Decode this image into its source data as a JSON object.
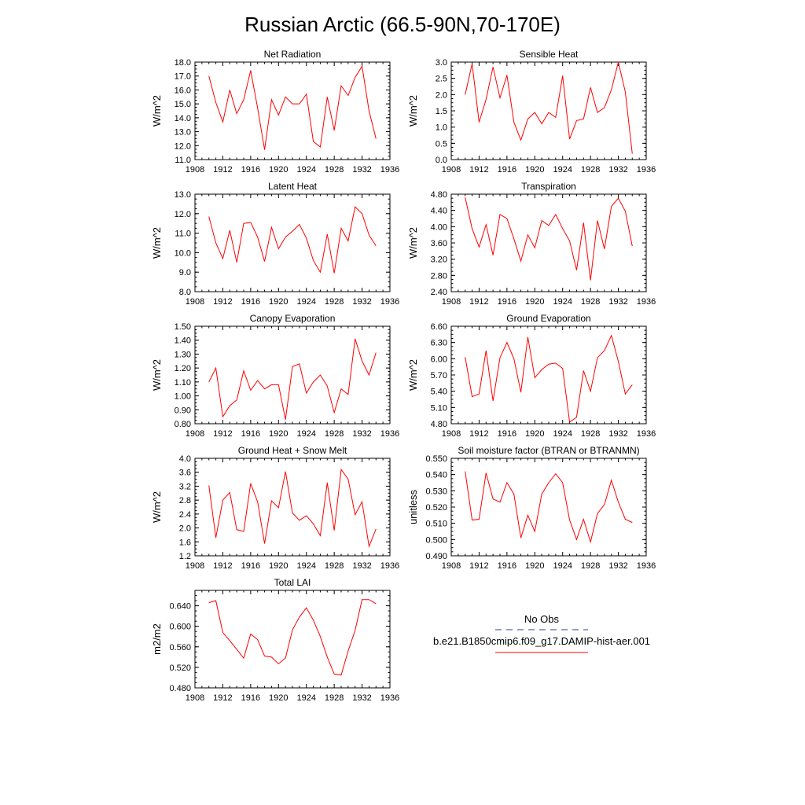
{
  "figure": {
    "title": "Russian Arctic (66.5-90N,70-170E)"
  },
  "legend": {
    "entries": [
      {
        "label": "No Obs",
        "color": "#2b3a9c",
        "dash": true
      },
      {
        "label": "b.e21.B1850cmip6.f09_g17.DAMIP-hist-aer.001",
        "color": "#ff0000",
        "dash": false
      }
    ]
  },
  "chart_data": [
    {
      "type": "line",
      "title": "Net Radiation",
      "ylabel": "W/m^2",
      "xlim": [
        1908,
        1936
      ],
      "ylim": [
        11.0,
        18.0
      ],
      "x_ticks": [
        "1908",
        "1912",
        "1916",
        "1920",
        "1924",
        "1928",
        "1932",
        "1936"
      ],
      "y_ticks": [
        "11.0",
        "12.0",
        "13.0",
        "14.0",
        "15.0",
        "16.0",
        "17.0",
        "18.0"
      ],
      "x": [
        1910,
        1911,
        1912,
        1913,
        1914,
        1915,
        1916,
        1917,
        1918,
        1919,
        1920,
        1921,
        1922,
        1923,
        1924,
        1925,
        1926,
        1927,
        1928,
        1929,
        1930,
        1931,
        1932,
        1933,
        1934
      ],
      "series": [
        {
          "color": "#ff0000",
          "values": [
            17.0,
            15.1,
            13.7,
            16.0,
            14.3,
            15.3,
            17.4,
            14.7,
            11.7,
            15.3,
            14.2,
            15.5,
            15.0,
            15.0,
            15.7,
            12.3,
            11.9,
            15.5,
            13.1,
            16.3,
            15.6,
            16.9,
            17.7,
            14.5,
            12.5
          ]
        }
      ]
    },
    {
      "type": "line",
      "title": "Sensible Heat",
      "ylabel": "W/m^2",
      "xlim": [
        1908,
        1936
      ],
      "ylim": [
        0.0,
        3.0
      ],
      "x_ticks": [
        "1908",
        "1912",
        "1916",
        "1920",
        "1924",
        "1928",
        "1932",
        "1936"
      ],
      "y_ticks": [
        "0.0",
        "0.5",
        "1.0",
        "1.5",
        "2.0",
        "2.5",
        "3.0"
      ],
      "x": [
        1910,
        1911,
        1912,
        1913,
        1914,
        1915,
        1916,
        1917,
        1918,
        1919,
        1920,
        1921,
        1922,
        1923,
        1924,
        1925,
        1926,
        1927,
        1928,
        1929,
        1930,
        1931,
        1932,
        1933,
        1934
      ],
      "series": [
        {
          "color": "#ff0000",
          "values": [
            2.0,
            2.95,
            1.15,
            1.85,
            2.85,
            1.9,
            2.6,
            1.15,
            0.6,
            1.25,
            1.45,
            1.1,
            1.45,
            1.3,
            2.58,
            0.63,
            1.2,
            1.25,
            2.22,
            1.45,
            1.6,
            2.15,
            3.0,
            2.08,
            0.18
          ]
        }
      ]
    },
    {
      "type": "line",
      "title": "Latent Heat",
      "ylabel": "W/m^2",
      "xlim": [
        1908,
        1936
      ],
      "ylim": [
        8.0,
        13.0
      ],
      "x_ticks": [
        "1908",
        "1912",
        "1916",
        "1920",
        "1924",
        "1928",
        "1932",
        "1936"
      ],
      "y_ticks": [
        "8.0",
        "9.0",
        "10.0",
        "11.0",
        "12.0",
        "13.0"
      ],
      "x": [
        1910,
        1911,
        1912,
        1913,
        1914,
        1915,
        1916,
        1917,
        1918,
        1919,
        1920,
        1921,
        1922,
        1923,
        1924,
        1925,
        1926,
        1927,
        1928,
        1929,
        1930,
        1931,
        1932,
        1933,
        1934
      ],
      "series": [
        {
          "color": "#ff0000",
          "values": [
            11.85,
            10.5,
            9.7,
            11.15,
            9.5,
            11.5,
            11.55,
            10.8,
            9.55,
            11.3,
            10.2,
            10.8,
            11.1,
            11.45,
            10.75,
            9.6,
            9.0,
            10.95,
            8.95,
            11.25,
            10.6,
            12.35,
            12.0,
            10.9,
            10.35
          ]
        }
      ]
    },
    {
      "type": "line",
      "title": "Transpiration",
      "ylabel": "W/m^2",
      "xlim": [
        1908,
        1936
      ],
      "ylim": [
        2.4,
        4.8
      ],
      "x_ticks": [
        "1908",
        "1912",
        "1916",
        "1920",
        "1924",
        "1928",
        "1932",
        "1936"
      ],
      "y_ticks": [
        "2.40",
        "2.80",
        "3.20",
        "3.60",
        "4.00",
        "4.40",
        "4.80"
      ],
      "x": [
        1910,
        1911,
        1912,
        1913,
        1914,
        1915,
        1916,
        1917,
        1918,
        1919,
        1920,
        1921,
        1922,
        1923,
        1924,
        1925,
        1926,
        1927,
        1928,
        1929,
        1930,
        1931,
        1932,
        1933,
        1934
      ],
      "series": [
        {
          "color": "#ff0000",
          "values": [
            4.72,
            3.95,
            3.5,
            4.05,
            3.3,
            4.3,
            4.2,
            3.7,
            3.15,
            3.8,
            3.48,
            4.15,
            4.03,
            4.3,
            3.95,
            3.65,
            2.93,
            4.1,
            2.68,
            4.15,
            3.45,
            4.5,
            4.7,
            4.38,
            3.52
          ]
        }
      ]
    },
    {
      "type": "line",
      "title": "Canopy Evaporation",
      "ylabel": "W/m^2",
      "xlim": [
        1908,
        1936
      ],
      "ylim": [
        0.8,
        1.5
      ],
      "x_ticks": [
        "1908",
        "1912",
        "1916",
        "1920",
        "1924",
        "1928",
        "1932",
        "1936"
      ],
      "y_ticks": [
        "0.80",
        "0.90",
        "1.00",
        "1.10",
        "1.20",
        "1.30",
        "1.40",
        "1.50"
      ],
      "x": [
        1910,
        1911,
        1912,
        1913,
        1914,
        1915,
        1916,
        1917,
        1918,
        1919,
        1920,
        1921,
        1922,
        1923,
        1924,
        1925,
        1926,
        1927,
        1928,
        1929,
        1930,
        1931,
        1932,
        1933,
        1934
      ],
      "series": [
        {
          "color": "#ff0000",
          "values": [
            1.1,
            1.2,
            0.85,
            0.93,
            0.97,
            1.18,
            1.04,
            1.11,
            1.05,
            1.08,
            1.08,
            0.83,
            1.21,
            1.23,
            1.02,
            1.1,
            1.15,
            1.07,
            0.88,
            1.05,
            1.01,
            1.41,
            1.25,
            1.15,
            1.31
          ]
        }
      ]
    },
    {
      "type": "line",
      "title": "Ground Evaporation",
      "ylabel": "W/m^2",
      "xlim": [
        1908,
        1936
      ],
      "ylim": [
        4.8,
        6.6
      ],
      "x_ticks": [
        "1908",
        "1912",
        "1916",
        "1920",
        "1924",
        "1928",
        "1932",
        "1936"
      ],
      "y_ticks": [
        "4.80",
        "5.10",
        "5.40",
        "5.70",
        "6.00",
        "6.30",
        "6.60"
      ],
      "x": [
        1910,
        1911,
        1912,
        1913,
        1914,
        1915,
        1916,
        1917,
        1918,
        1919,
        1920,
        1921,
        1922,
        1923,
        1924,
        1925,
        1926,
        1927,
        1928,
        1929,
        1930,
        1931,
        1932,
        1933,
        1934
      ],
      "series": [
        {
          "color": "#ff0000",
          "values": [
            6.03,
            5.3,
            5.35,
            6.15,
            5.22,
            6.02,
            6.3,
            6.0,
            5.38,
            6.4,
            5.65,
            5.8,
            5.9,
            5.92,
            5.82,
            4.83,
            4.92,
            5.78,
            5.4,
            6.02,
            6.15,
            6.43,
            5.95,
            5.35,
            5.52
          ]
        }
      ]
    },
    {
      "type": "line",
      "title": "Ground Heat + Snow Melt",
      "ylabel": "W/m^2",
      "xlim": [
        1908,
        1936
      ],
      "ylim": [
        1.2,
        4.0
      ],
      "x_ticks": [
        "1908",
        "1912",
        "1916",
        "1920",
        "1924",
        "1928",
        "1932",
        "1936"
      ],
      "y_ticks": [
        "1.2",
        "1.6",
        "2.0",
        "2.4",
        "2.8",
        "3.2",
        "3.6",
        "4.0"
      ],
      "x": [
        1910,
        1911,
        1912,
        1913,
        1914,
        1915,
        1916,
        1917,
        1918,
        1919,
        1920,
        1921,
        1922,
        1923,
        1924,
        1925,
        1926,
        1927,
        1928,
        1929,
        1930,
        1931,
        1932,
        1933,
        1934
      ],
      "series": [
        {
          "color": "#ff0000",
          "values": [
            3.22,
            1.72,
            2.8,
            3.02,
            1.95,
            1.9,
            3.28,
            2.75,
            1.55,
            2.78,
            2.58,
            3.62,
            2.43,
            2.22,
            2.35,
            2.12,
            1.78,
            3.3,
            1.93,
            3.68,
            3.4,
            2.38,
            2.75,
            1.47,
            1.97
          ]
        }
      ]
    },
    {
      "type": "line",
      "title": "Soil moisture factor (BTRAN or BTRANMN)",
      "ylabel": "unitless",
      "xlim": [
        1908,
        1936
      ],
      "ylim": [
        0.49,
        0.55
      ],
      "x_ticks": [
        "1908",
        "1912",
        "1916",
        "1920",
        "1924",
        "1928",
        "1932",
        "1936"
      ],
      "y_ticks": [
        "0.490",
        "0.500",
        "0.510",
        "0.520",
        "0.530",
        "0.540",
        "0.550"
      ],
      "x": [
        1910,
        1911,
        1912,
        1913,
        1914,
        1915,
        1916,
        1917,
        1918,
        1919,
        1920,
        1921,
        1922,
        1923,
        1924,
        1925,
        1926,
        1927,
        1928,
        1929,
        1930,
        1931,
        1932,
        1933,
        1934
      ],
      "series": [
        {
          "color": "#ff0000",
          "values": [
            0.542,
            0.512,
            0.5125,
            0.541,
            0.525,
            0.523,
            0.535,
            0.528,
            0.501,
            0.515,
            0.505,
            0.528,
            0.535,
            0.5405,
            0.535,
            0.512,
            0.5,
            0.5125,
            0.4985,
            0.516,
            0.5215,
            0.5365,
            0.523,
            0.5125,
            0.5105
          ]
        }
      ]
    },
    {
      "type": "line",
      "title": "Total LAI",
      "ylabel": "m2/m2",
      "xlim": [
        1908,
        1936
      ],
      "ylim": [
        0.48,
        0.67
      ],
      "x_ticks": [
        "1908",
        "1912",
        "1916",
        "1920",
        "1924",
        "1928",
        "1932",
        "1936"
      ],
      "y_ticks": [
        "0.480",
        "0.520",
        "0.560",
        "0.600",
        "0.640"
      ],
      "x": [
        1910,
        1911,
        1912,
        1913,
        1914,
        1915,
        1916,
        1917,
        1918,
        1919,
        1920,
        1921,
        1922,
        1923,
        1924,
        1925,
        1926,
        1927,
        1928,
        1929,
        1930,
        1931,
        1932,
        1933,
        1934
      ],
      "series": [
        {
          "color": "#ff0000",
          "values": [
            0.646,
            0.65,
            0.588,
            0.572,
            0.555,
            0.538,
            0.585,
            0.574,
            0.542,
            0.54,
            0.527,
            0.538,
            0.593,
            0.618,
            0.636,
            0.612,
            0.58,
            0.54,
            0.507,
            0.505,
            0.552,
            0.592,
            0.652,
            0.652,
            0.644
          ]
        }
      ]
    }
  ]
}
